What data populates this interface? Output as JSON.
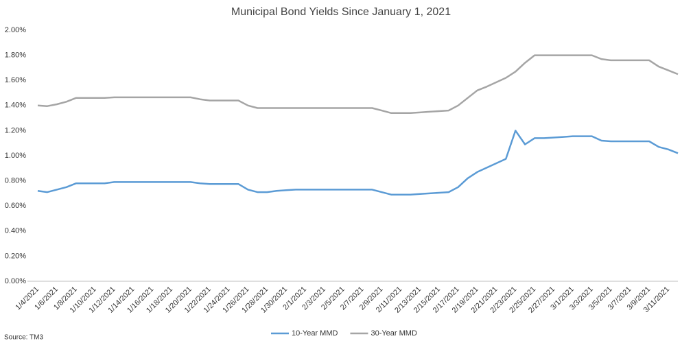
{
  "chart_data": {
    "type": "line",
    "title": "Municipal Bond Yields Since January 1, 2021",
    "source": "Source: TM3",
    "categories": [
      "1/4/2021",
      null,
      "1/6/2021",
      null,
      "1/8/2021",
      null,
      "1/10/2021",
      null,
      "1/12/2021",
      null,
      "1/14/2021",
      null,
      "1/16/2021",
      null,
      "1/18/2021",
      null,
      "1/20/2021",
      null,
      "1/22/2021",
      null,
      "1/24/2021",
      null,
      "1/26/2021",
      null,
      "1/28/2021",
      null,
      "1/30/2021",
      null,
      "2/1/2021",
      null,
      "2/3/2021",
      null,
      "2/5/2021",
      null,
      "2/7/2021",
      null,
      "2/9/2021",
      null,
      "2/11/2021",
      null,
      "2/13/2021",
      null,
      "2/15/2021",
      null,
      "2/17/2021",
      null,
      "2/19/2021",
      null,
      "2/21/2021",
      null,
      "2/23/2021",
      null,
      "2/25/2021",
      null,
      "2/27/2021",
      null,
      "3/1/2021",
      null,
      "3/3/2021",
      null,
      "3/5/2021",
      null,
      "3/7/2021",
      null,
      "3/9/2021",
      null,
      "3/11/2021",
      null
    ],
    "series": [
      {
        "name": "10-Year MMD",
        "color": "#5b9bd5",
        "values": [
          0.72,
          0.71,
          0.73,
          0.75,
          0.78,
          0.78,
          0.78,
          0.78,
          0.79,
          0.79,
          0.79,
          0.79,
          0.79,
          0.79,
          0.79,
          0.79,
          0.79,
          0.78,
          0.775,
          0.775,
          0.775,
          0.775,
          0.73,
          0.71,
          0.71,
          0.72,
          0.725,
          0.73,
          0.73,
          0.73,
          0.73,
          0.73,
          0.73,
          0.73,
          0.73,
          0.73,
          0.71,
          0.69,
          0.69,
          0.69,
          0.695,
          0.7,
          0.705,
          0.71,
          0.75,
          0.82,
          0.87,
          0.905,
          0.94,
          0.975,
          1.2,
          1.09,
          1.14,
          1.14,
          1.145,
          1.15,
          1.155,
          1.155,
          1.155,
          1.12,
          1.115,
          1.115,
          1.115,
          1.115,
          1.115,
          1.07,
          1.05,
          1.02
        ]
      },
      {
        "name": "30-Year MMD",
        "color": "#a5a5a5",
        "values": [
          1.4,
          1.395,
          1.41,
          1.43,
          1.46,
          1.46,
          1.46,
          1.46,
          1.465,
          1.465,
          1.465,
          1.465,
          1.465,
          1.465,
          1.465,
          1.465,
          1.465,
          1.45,
          1.44,
          1.44,
          1.44,
          1.44,
          1.4,
          1.38,
          1.38,
          1.38,
          1.38,
          1.38,
          1.38,
          1.38,
          1.38,
          1.38,
          1.38,
          1.38,
          1.38,
          1.38,
          1.36,
          1.34,
          1.34,
          1.34,
          1.345,
          1.35,
          1.355,
          1.36,
          1.4,
          1.46,
          1.52,
          1.55,
          1.585,
          1.62,
          1.67,
          1.74,
          1.8,
          1.8,
          1.8,
          1.8,
          1.8,
          1.8,
          1.8,
          1.77,
          1.76,
          1.76,
          1.76,
          1.76,
          1.76,
          1.71,
          1.68,
          1.65
        ]
      }
    ],
    "ylim": [
      0,
      2
    ],
    "yticks": [
      {
        "value": 0,
        "label": "0.00%"
      },
      {
        "value": 0.2,
        "label": "0.20%"
      },
      {
        "value": 0.4,
        "label": "0.40%"
      },
      {
        "value": 0.6,
        "label": "0.60%"
      },
      {
        "value": 0.8,
        "label": "0.80%"
      },
      {
        "value": 1.0,
        "label": "1.00%"
      },
      {
        "value": 1.2,
        "label": "1.20%"
      },
      {
        "value": 1.4,
        "label": "1.40%"
      },
      {
        "value": 1.6,
        "label": "1.60%"
      },
      {
        "value": 1.8,
        "label": "1.80%"
      },
      {
        "value": 2.0,
        "label": "2.00%"
      }
    ],
    "grid": false,
    "legend": "bottom"
  }
}
